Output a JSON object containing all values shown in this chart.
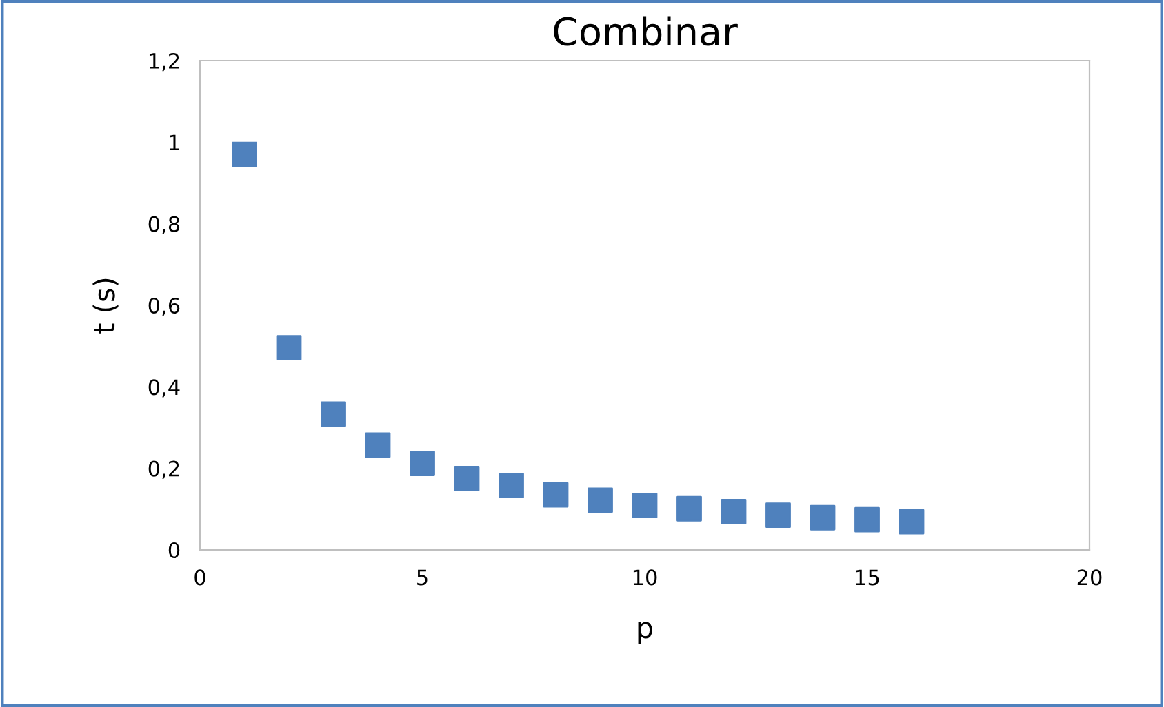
{
  "chart_data": {
    "type": "scatter",
    "title": "Combinar",
    "xlabel": "p",
    "ylabel": "t (s)",
    "x": [
      1,
      2,
      3,
      4,
      5,
      6,
      7,
      8,
      9,
      10,
      11,
      12,
      13,
      14,
      15,
      16
    ],
    "series": [
      {
        "color": "#4f81bd",
        "values": [
          0.97,
          0.496,
          0.333,
          0.257,
          0.212,
          0.175,
          0.158,
          0.135,
          0.122,
          0.109,
          0.101,
          0.094,
          0.085,
          0.079,
          0.074,
          0.069
        ]
      }
    ],
    "xlim": [
      0,
      20
    ],
    "xticks": [
      0,
      5,
      10,
      15,
      20
    ],
    "ylim": [
      0,
      1.2
    ],
    "yticks": [
      {
        "value": 0,
        "label": "0"
      },
      {
        "value": 0.2,
        "label": "0,2"
      },
      {
        "value": 0.4,
        "label": "0,4"
      },
      {
        "value": 0.6,
        "label": "0,6"
      },
      {
        "value": 0.8,
        "label": "0,8"
      },
      {
        "value": 1,
        "label": "1"
      },
      {
        "value": 1.2,
        "label": "1,2"
      }
    ],
    "marker": "square",
    "grid": false,
    "legend": false
  }
}
